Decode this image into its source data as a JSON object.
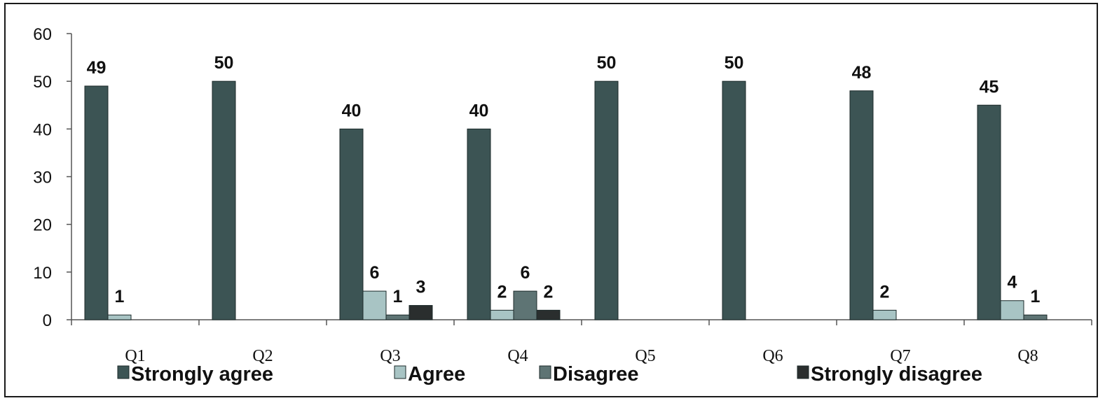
{
  "chart_data": {
    "type": "bar",
    "categories": [
      "Q1",
      "Q2",
      "Q3",
      "Q4",
      "Q5",
      "Q6",
      "Q7",
      "Q8"
    ],
    "series": [
      {
        "name": "Strongly agree",
        "color": "#3c5454",
        "values": [
          49,
          50,
          40,
          40,
          50,
          50,
          48,
          45
        ]
      },
      {
        "name": "Agree",
        "color": "#a8c4c4",
        "values": [
          1,
          0,
          6,
          2,
          0,
          0,
          2,
          4
        ]
      },
      {
        "name": "Disagree",
        "color": "#5e7474",
        "values": [
          0,
          0,
          1,
          6,
          0,
          0,
          0,
          1
        ]
      },
      {
        "name": "Strongly disagree",
        "color": "#2a2e2e",
        "values": [
          0,
          0,
          3,
          2,
          0,
          0,
          0,
          0
        ]
      }
    ],
    "ylim": [
      0,
      60
    ],
    "yticks": [
      0,
      10,
      20,
      30,
      40,
      50,
      60
    ],
    "title": "",
    "xlabel": "",
    "ylabel": "",
    "grid": false,
    "legend_position": "bottom"
  }
}
